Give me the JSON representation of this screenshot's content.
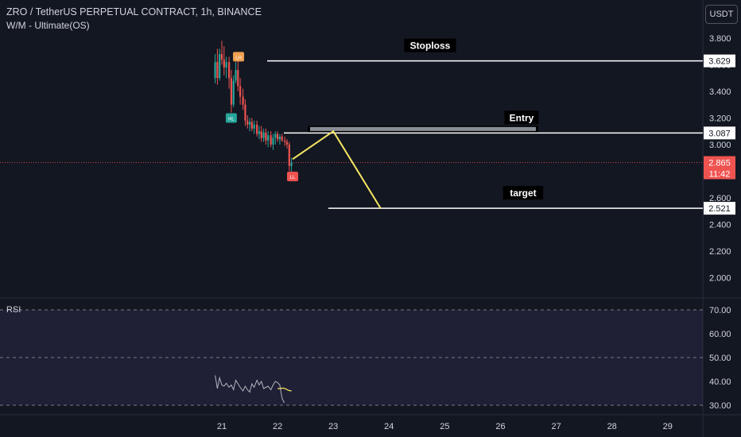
{
  "header": {
    "title": "ZRO / TetherUS PERPETUAL CONTRACT, 1h, BINANCE",
    "indicator": "W/M - Ultimate(OS)",
    "currency_button": "USDT"
  },
  "colors": {
    "background": "#131722",
    "up": "#26a69a",
    "down": "#ef5350",
    "projection": "#f5e663",
    "level_line": "#ffffff",
    "rsi_band": "#7e57c2",
    "rsi_line": "#b2b5be",
    "lh_marker": "#f0a050",
    "hl_marker": "#26a69a",
    "ll_marker": "#ef5350"
  },
  "chart_data": [
    {
      "type": "candlestick",
      "x_ticks": [
        "21",
        "22",
        "23",
        "24",
        "25",
        "26",
        "27",
        "28",
        "29"
      ],
      "y_ticks": [
        "3.800",
        "3.600",
        "3.400",
        "3.200",
        "3.000",
        "2.600",
        "2.400",
        "2.200",
        "2.000"
      ],
      "ylim": [
        1.85,
        3.88
      ],
      "current_price": {
        "value": 2.865,
        "label": "2.865",
        "countdown": "11:42"
      },
      "levels": [
        {
          "name": "Stoploss",
          "value": 3.629,
          "label": "3.629"
        },
        {
          "name": "Entry",
          "value": 3.087,
          "label": "3.087"
        },
        {
          "name": "target",
          "value": 2.521,
          "label": "2.521"
        }
      ],
      "markers": [
        {
          "label": "LH",
          "day": 21.3,
          "value": 3.66
        },
        {
          "label": "HL",
          "day": 21.17,
          "value": 3.2
        },
        {
          "label": "LL",
          "day": 22.27,
          "value": 2.76
        }
      ],
      "projection": [
        {
          "day": 22.27,
          "value": 2.89
        },
        {
          "day": 23.0,
          "value": 3.1
        },
        {
          "day": 23.85,
          "value": 2.52
        }
      ],
      "candles": [
        {
          "day": 20.88,
          "open": 3.5,
          "high": 3.68,
          "low": 3.46,
          "close": 3.62
        },
        {
          "day": 20.92,
          "open": 3.62,
          "high": 3.72,
          "low": 3.45,
          "close": 3.5
        },
        {
          "day": 20.96,
          "open": 3.5,
          "high": 3.72,
          "low": 3.48,
          "close": 3.68
        },
        {
          "day": 21.0,
          "open": 3.68,
          "high": 3.78,
          "low": 3.6,
          "close": 3.64
        },
        {
          "day": 21.04,
          "open": 3.64,
          "high": 3.74,
          "low": 3.52,
          "close": 3.58
        },
        {
          "day": 21.08,
          "open": 3.58,
          "high": 3.66,
          "low": 3.5,
          "close": 3.62
        },
        {
          "day": 21.13,
          "open": 3.62,
          "high": 3.66,
          "low": 3.42,
          "close": 3.5
        },
        {
          "day": 21.17,
          "open": 3.5,
          "high": 3.56,
          "low": 3.24,
          "close": 3.3
        },
        {
          "day": 21.21,
          "open": 3.3,
          "high": 3.52,
          "low": 3.28,
          "close": 3.48
        },
        {
          "day": 21.25,
          "open": 3.48,
          "high": 3.62,
          "low": 3.46,
          "close": 3.56
        },
        {
          "day": 21.29,
          "open": 3.56,
          "high": 3.66,
          "low": 3.4,
          "close": 3.44
        },
        {
          "day": 21.33,
          "open": 3.44,
          "high": 3.5,
          "low": 3.3,
          "close": 3.36
        },
        {
          "day": 21.38,
          "open": 3.36,
          "high": 3.42,
          "low": 3.26,
          "close": 3.3
        },
        {
          "day": 21.42,
          "open": 3.3,
          "high": 3.34,
          "low": 3.14,
          "close": 3.18
        },
        {
          "day": 21.46,
          "open": 3.18,
          "high": 3.22,
          "low": 3.12,
          "close": 3.15
        },
        {
          "day": 21.5,
          "open": 3.15,
          "high": 3.2,
          "low": 3.1,
          "close": 3.17
        },
        {
          "day": 21.54,
          "open": 3.17,
          "high": 3.2,
          "low": 3.1,
          "close": 3.12
        },
        {
          "day": 21.58,
          "open": 3.12,
          "high": 3.18,
          "low": 3.08,
          "close": 3.15
        },
        {
          "day": 21.63,
          "open": 3.15,
          "high": 3.18,
          "low": 3.06,
          "close": 3.08
        },
        {
          "day": 21.67,
          "open": 3.08,
          "high": 3.14,
          "low": 3.04,
          "close": 3.1
        },
        {
          "day": 21.71,
          "open": 3.1,
          "high": 3.14,
          "low": 3.02,
          "close": 3.05
        },
        {
          "day": 21.75,
          "open": 3.05,
          "high": 3.12,
          "low": 3.02,
          "close": 3.09
        },
        {
          "day": 21.79,
          "open": 3.09,
          "high": 3.12,
          "low": 3.0,
          "close": 3.03
        },
        {
          "day": 21.83,
          "open": 3.03,
          "high": 3.1,
          "low": 2.98,
          "close": 3.07
        },
        {
          "day": 21.88,
          "open": 3.07,
          "high": 3.1,
          "low": 2.98,
          "close": 3.0
        },
        {
          "day": 21.92,
          "open": 3.0,
          "high": 3.08,
          "low": 2.96,
          "close": 3.05
        },
        {
          "day": 21.96,
          "open": 3.05,
          "high": 3.1,
          "low": 3.0,
          "close": 3.08
        },
        {
          "day": 22.0,
          "open": 3.08,
          "high": 3.1,
          "low": 3.02,
          "close": 3.04
        },
        {
          "day": 22.04,
          "open": 3.04,
          "high": 3.08,
          "low": 3.0,
          "close": 3.06
        },
        {
          "day": 22.08,
          "open": 3.06,
          "high": 3.08,
          "low": 3.02,
          "close": 3.03
        },
        {
          "day": 22.13,
          "open": 3.03,
          "high": 3.06,
          "low": 2.99,
          "close": 3.02
        },
        {
          "day": 22.17,
          "open": 3.02,
          "high": 3.04,
          "low": 2.97,
          "close": 3.0
        },
        {
          "day": 22.21,
          "open": 3.0,
          "high": 3.02,
          "low": 2.8,
          "close": 2.84
        },
        {
          "day": 22.25,
          "open": 2.84,
          "high": 2.9,
          "low": 2.78,
          "close": 2.865
        }
      ]
    },
    {
      "type": "line",
      "title": "RSI",
      "y_ticks": [
        "70.00",
        "60.00",
        "50.00",
        "40.00",
        "30.00"
      ],
      "ylim": [
        28.5,
        74
      ],
      "band": [
        30,
        70
      ],
      "midline": 50,
      "rsi": [
        [
          20.88,
          42.5
        ],
        [
          20.92,
          37.0
        ],
        [
          20.96,
          41.5
        ],
        [
          21.0,
          38.5
        ],
        [
          21.04,
          38.0
        ],
        [
          21.08,
          39.2
        ],
        [
          21.13,
          37.5
        ],
        [
          21.17,
          38.5
        ],
        [
          21.21,
          36.5
        ],
        [
          21.25,
          40.5
        ],
        [
          21.29,
          39.0
        ],
        [
          21.33,
          37.5
        ],
        [
          21.38,
          36.0
        ],
        [
          21.42,
          38.0
        ],
        [
          21.46,
          36.5
        ],
        [
          21.5,
          35.5
        ],
        [
          21.54,
          39.0
        ],
        [
          21.58,
          37.5
        ],
        [
          21.63,
          40.5
        ],
        [
          21.67,
          38.5
        ],
        [
          21.71,
          40.0
        ],
        [
          21.75,
          37.0
        ],
        [
          21.79,
          37.5
        ],
        [
          21.83,
          38.0
        ],
        [
          21.88,
          36.5
        ],
        [
          21.92,
          38.5
        ],
        [
          21.96,
          40.0
        ],
        [
          22.0,
          39.5
        ],
        [
          22.04,
          38.5
        ],
        [
          22.08,
          33.0
        ],
        [
          22.12,
          31.0
        ]
      ],
      "rsi_ma": [
        [
          22.0,
          37.0
        ],
        [
          22.05,
          37.0
        ],
        [
          22.1,
          37.2
        ],
        [
          22.15,
          36.8
        ],
        [
          22.2,
          36.2
        ],
        [
          22.25,
          36.0
        ]
      ]
    }
  ]
}
